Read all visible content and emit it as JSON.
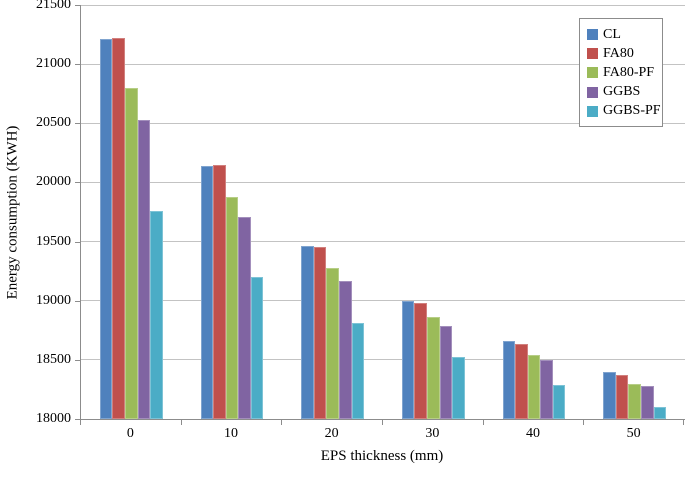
{
  "chart_data": {
    "type": "bar",
    "title": "",
    "xlabel": "EPS thickness (mm)",
    "ylabel": "Energy consumption (KWH)",
    "categories": [
      "0",
      "10",
      "20",
      "30",
      "40",
      "50"
    ],
    "series": [
      {
        "name": "CL",
        "color": "#4f81bd",
        "values": [
          21210,
          20140,
          19460,
          19000,
          18660,
          18400
        ]
      },
      {
        "name": "FA80",
        "color": "#c0504d",
        "values": [
          21220,
          20150,
          19450,
          18980,
          18630,
          18370
        ]
      },
      {
        "name": "FA80-PF",
        "color": "#9bbb59",
        "values": [
          20800,
          19880,
          19280,
          18860,
          18540,
          18300
        ]
      },
      {
        "name": "GGBS",
        "color": "#8064a2",
        "values": [
          20530,
          19710,
          19170,
          18790,
          18500,
          18280
        ]
      },
      {
        "name": "GGBS-PF",
        "color": "#4bacc6",
        "values": [
          19760,
          19200,
          18810,
          18520,
          18290,
          18100
        ]
      }
    ],
    "ylim": [
      18000,
      21500
    ],
    "yticks": [
      18000,
      18500,
      19000,
      19500,
      20000,
      20500,
      21000,
      21500
    ],
    "grid": true,
    "legend_position": "top-right",
    "axis_color": "#8c8c8c",
    "gridline_color": "#c3c3c3"
  }
}
